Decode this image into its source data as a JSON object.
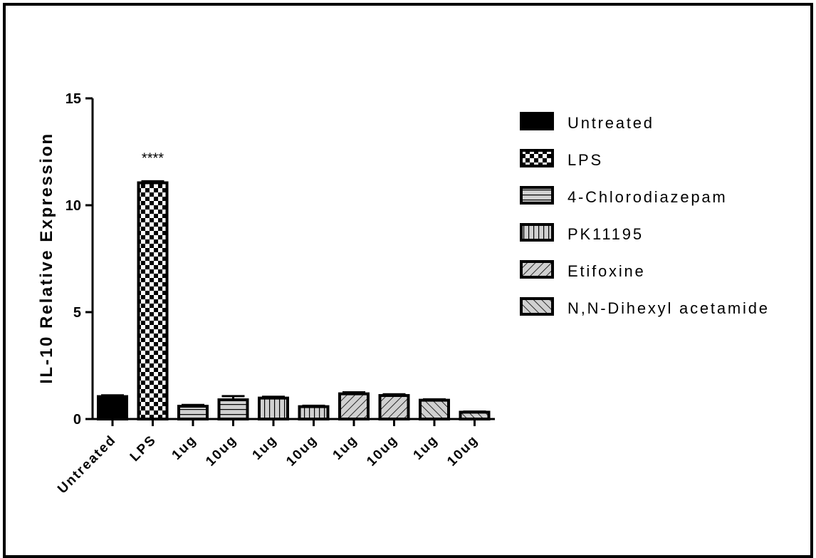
{
  "chart_data": {
    "type": "bar",
    "title": "",
    "xlabel": "",
    "ylabel": "IL-10 Relative Expression",
    "ylim": [
      0,
      15
    ],
    "yticks": [
      0,
      5,
      10,
      15
    ],
    "grid": false,
    "legend_position": "right",
    "categories": [
      "Untreated",
      "LPS",
      "1ug",
      "10ug",
      "1ug",
      "10ug",
      "1ug",
      "10ug",
      "1ug",
      "10ug"
    ],
    "values": [
      1.05,
      11.05,
      0.6,
      0.9,
      0.98,
      0.58,
      1.18,
      1.1,
      0.88,
      0.32
    ],
    "errors": [
      0.06,
      0.07,
      0.06,
      0.17,
      0.06,
      0.04,
      0.07,
      0.06,
      0.04,
      0.03
    ],
    "bar_groups": [
      "Untreated",
      "LPS",
      "4-Chlorodiazepam",
      "4-Chlorodiazepam",
      "PK11195",
      "PK11195",
      "Etifoxine",
      "Etifoxine",
      "N,N-Dihexyl acetamide",
      "N,N-Dihexyl acetamide"
    ],
    "annotations": [
      {
        "category_index": 1,
        "text": "****"
      }
    ],
    "legend": [
      {
        "label": "Untreated",
        "pattern": "solid"
      },
      {
        "label": "LPS",
        "pattern": "checker"
      },
      {
        "label": "4-Chlorodiazepam",
        "pattern": "horizontal"
      },
      {
        "label": "PK11195",
        "pattern": "vertical"
      },
      {
        "label": "Etifoxine",
        "pattern": "diag-up"
      },
      {
        "label": "N,N-Dihexyl acetamide",
        "pattern": "diag-down"
      }
    ],
    "colors": {
      "fill": "#d0d0d0",
      "stroke": "#000000",
      "dark": "#000000"
    }
  }
}
